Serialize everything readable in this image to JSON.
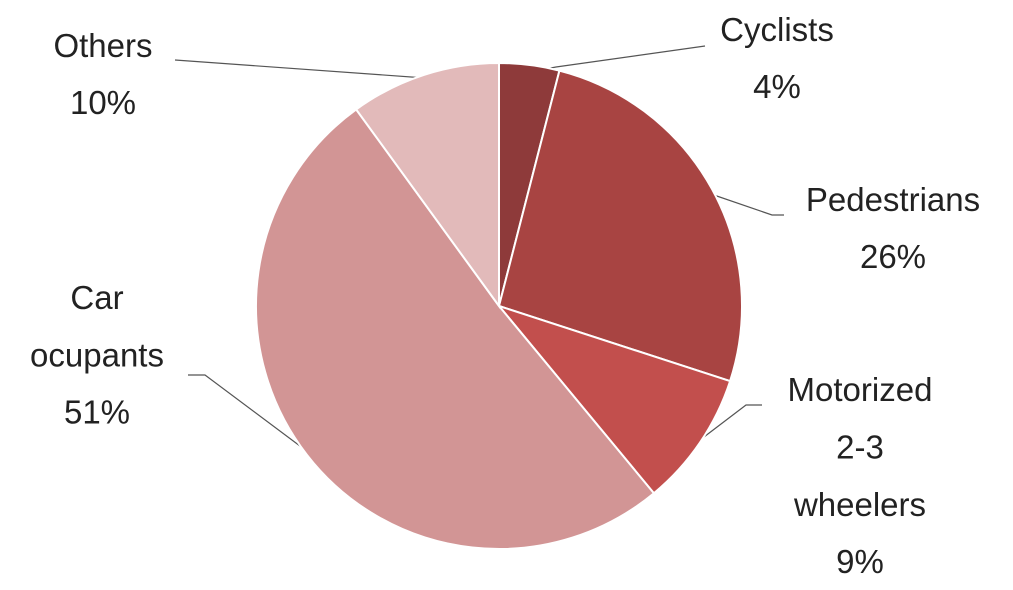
{
  "chart_data": {
    "type": "pie",
    "categories": [
      "Cyclists",
      "Pedestrians",
      "Motorized 2-3 wheelers",
      "Car ocupants",
      "Others"
    ],
    "values": [
      4,
      26,
      9,
      51,
      10
    ],
    "value_labels": [
      "4%",
      "26%",
      "9%",
      "51%",
      "10%"
    ],
    "colors": [
      "#8e3a3a",
      "#a84442",
      "#c24f4d",
      "#d29595",
      "#e2baba"
    ]
  }
}
